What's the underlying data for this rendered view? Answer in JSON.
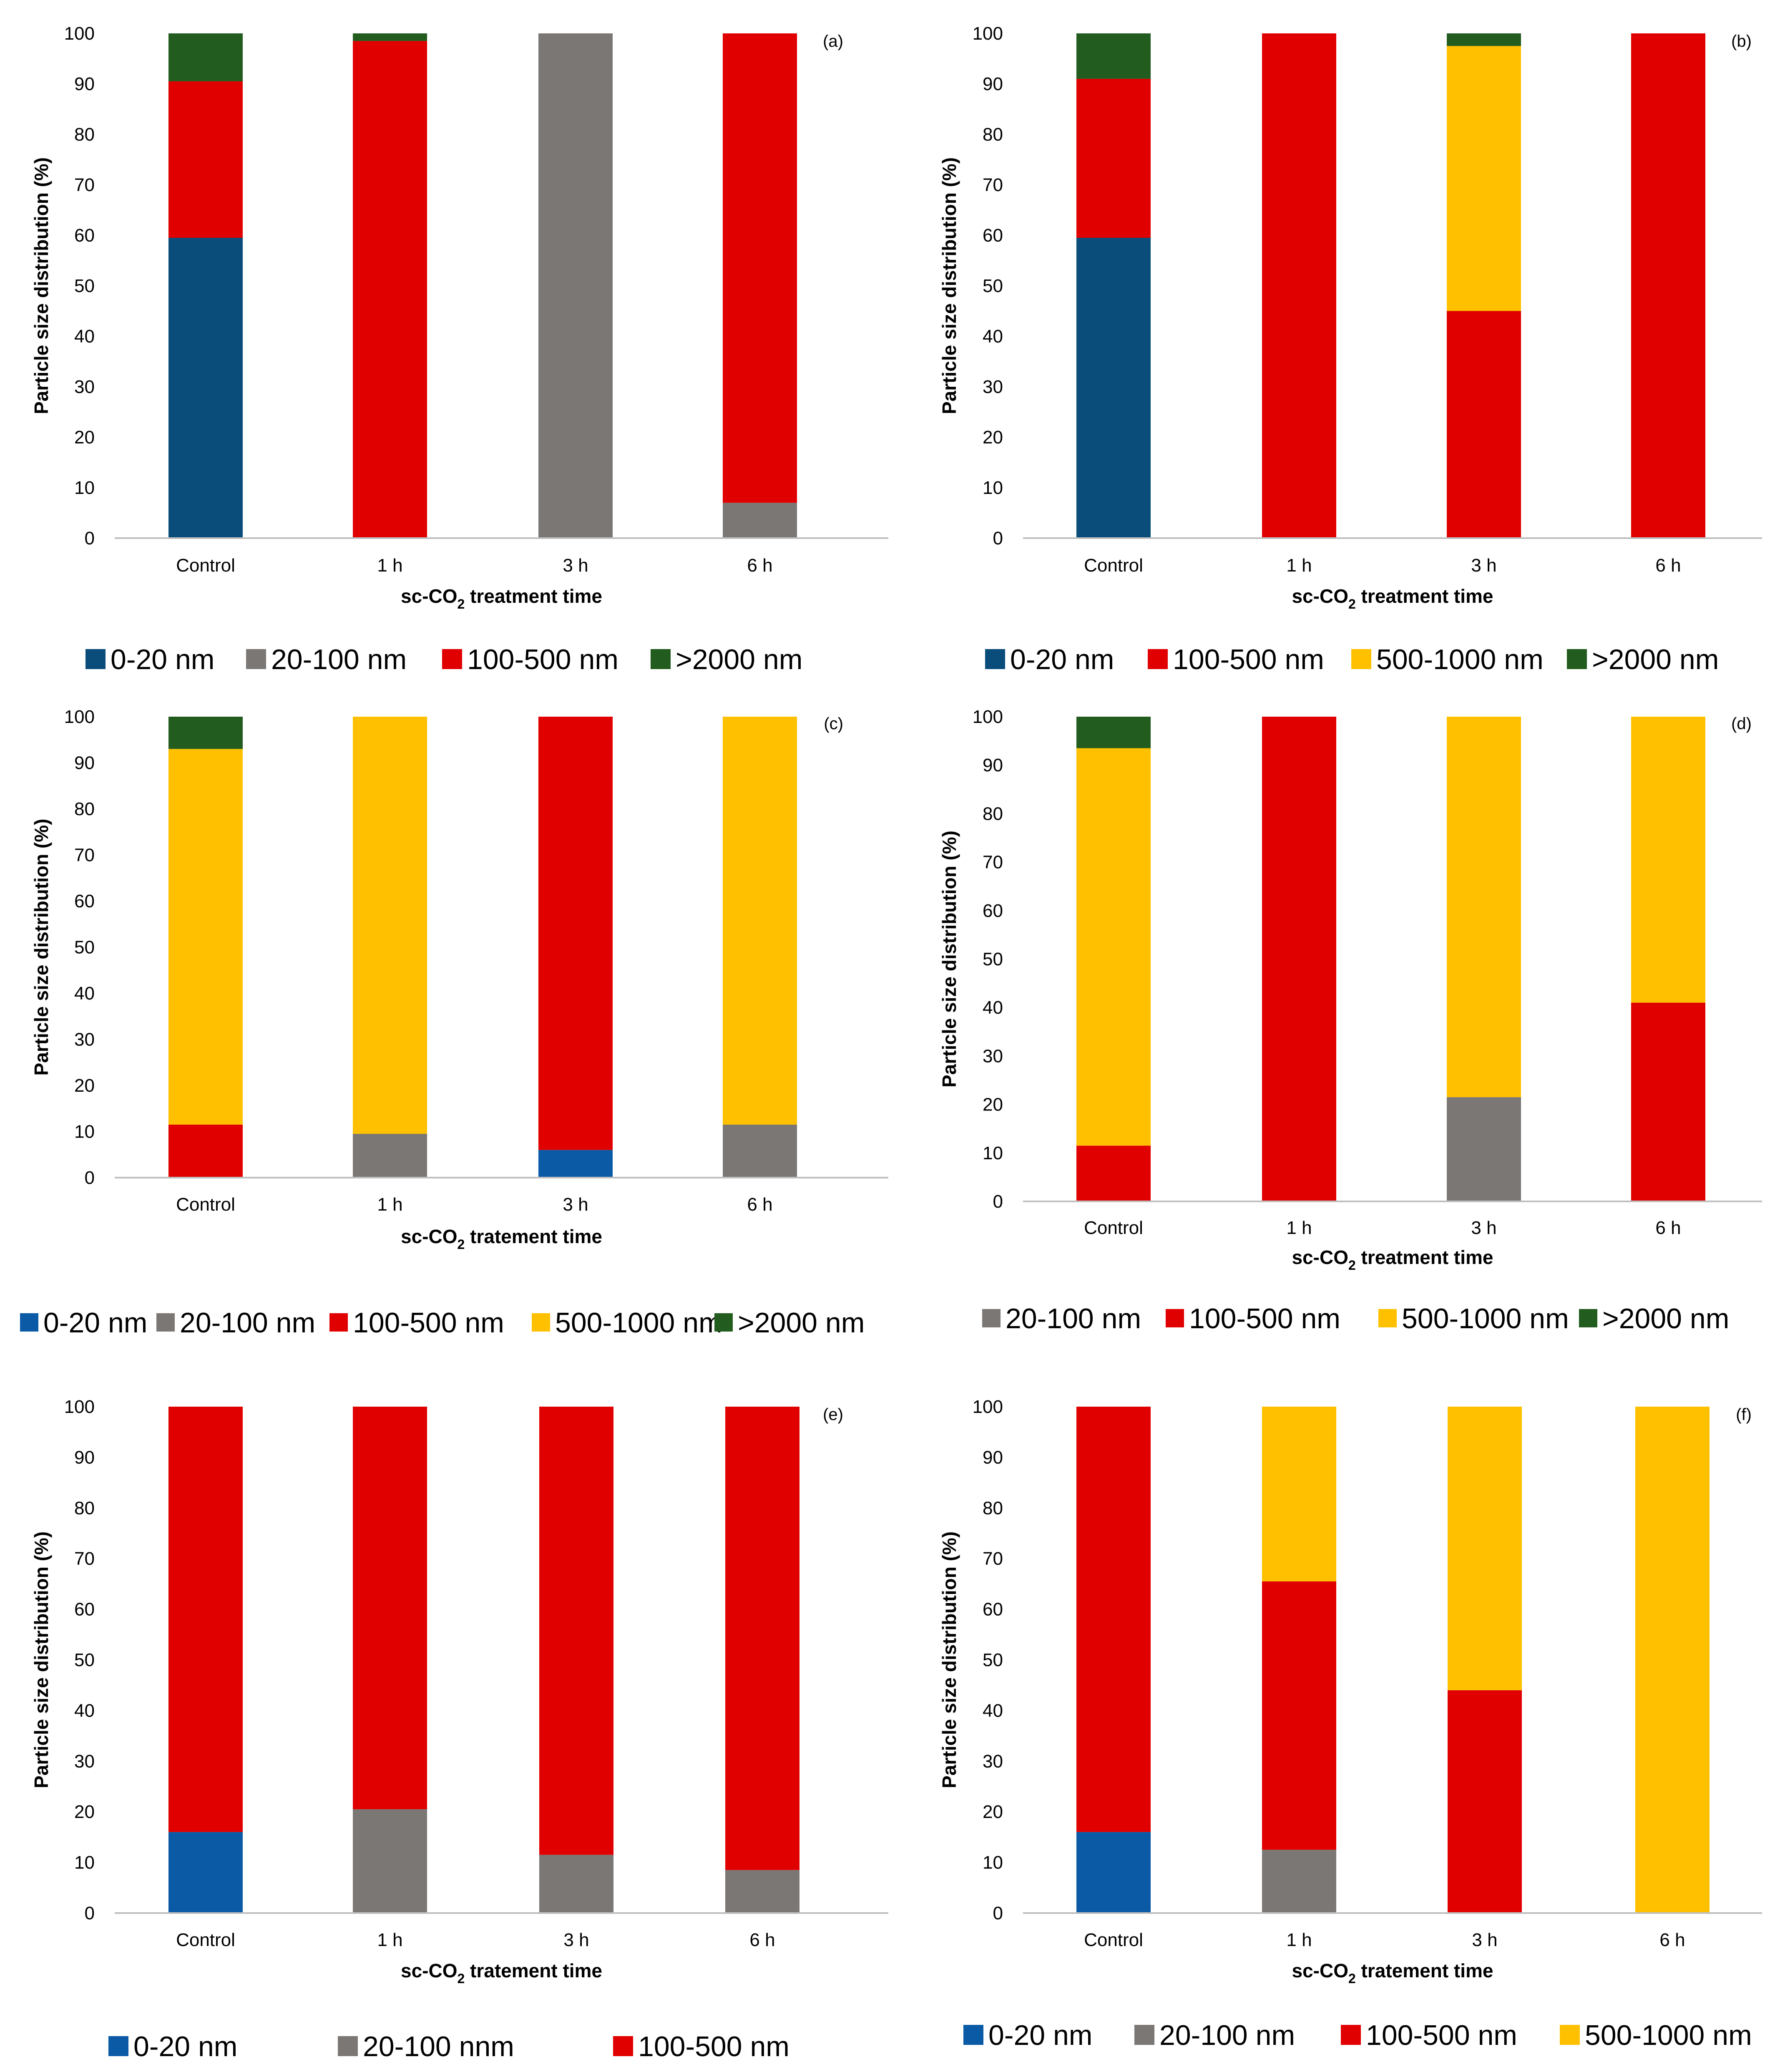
{
  "colors": {
    "0-20 nm": "#0a4c7a",
    "0-20 nm (c,e,f)": "#0b5aa6",
    "20-100 nm": "#7b7774",
    "100-500 nm": "#e00000",
    "500-1000 nm": "#ffc000",
    ">2000 nm": "#225c1e"
  },
  "chart_data": [
    {
      "panel": "(a)",
      "type": "bar",
      "stacked": true,
      "categories": [
        "Control",
        "1 h",
        "3 h",
        "6 h"
      ],
      "xlabel_prefix": "sc-CO",
      "xlabel_sub": "2",
      "xlabel_suffix": " treatment time",
      "ylabel": "Particle size distribution (%)",
      "ylim": [
        0,
        100
      ],
      "yticks": [
        0,
        10,
        20,
        30,
        40,
        50,
        60,
        70,
        80,
        90,
        100
      ],
      "legend": [
        "0-20 nm",
        "20-100 nm",
        "100-500 nm",
        ">2000 nm"
      ],
      "series": [
        {
          "name": "0-20 nm",
          "color": "#0a4c7a",
          "values": [
            59.5,
            0,
            0,
            0
          ]
        },
        {
          "name": "20-100 nm",
          "color": "#7b7774",
          "values": [
            0,
            0,
            100,
            7
          ]
        },
        {
          "name": "100-500 nm",
          "color": "#e00000",
          "values": [
            31,
            98.5,
            0,
            93
          ]
        },
        {
          "name": ">2000 nm",
          "color": "#225c1e",
          "values": [
            9.5,
            1.5,
            0,
            0
          ]
        }
      ]
    },
    {
      "panel": "(b)",
      "type": "bar",
      "stacked": true,
      "categories": [
        "Control",
        "1 h",
        "3 h",
        "6 h"
      ],
      "xlabel_prefix": "sc-CO",
      "xlabel_sub": "2",
      "xlabel_suffix": " treatment time",
      "ylabel": "Particle size distribution (%)",
      "ylim": [
        0,
        100
      ],
      "yticks": [
        0,
        10,
        20,
        30,
        40,
        50,
        60,
        70,
        80,
        90,
        100
      ],
      "legend": [
        "0-20 nm",
        "100-500 nm",
        "500-1000 nm",
        ">2000 nm"
      ],
      "series": [
        {
          "name": "0-20 nm",
          "color": "#0a4c7a",
          "values": [
            59.5,
            0,
            0,
            0
          ]
        },
        {
          "name": "100-500 nm",
          "color": "#e00000",
          "values": [
            31.5,
            100,
            45,
            100
          ]
        },
        {
          "name": "500-1000 nm",
          "color": "#ffc000",
          "values": [
            0,
            0,
            52.5,
            0
          ]
        },
        {
          "name": ">2000 nm",
          "color": "#225c1e",
          "values": [
            9,
            0,
            2.5,
            0
          ]
        }
      ]
    },
    {
      "panel": "(c)",
      "type": "bar",
      "stacked": true,
      "categories": [
        "Control",
        "1 h",
        "3 h",
        "6 h"
      ],
      "xlabel_prefix": "sc-CO",
      "xlabel_sub": "2",
      "xlabel_suffix": " tratement time",
      "ylabel": "Particle size distribution (%)",
      "ylim": [
        0,
        100
      ],
      "yticks": [
        0,
        10,
        20,
        30,
        40,
        50,
        60,
        70,
        80,
        90,
        100
      ],
      "legend": [
        "0-20 nm",
        "20-100 nm",
        "100-500 nm",
        "500-1000 nm",
        ">2000 nm"
      ],
      "series": [
        {
          "name": "0-20 nm",
          "color": "#0b5aa6",
          "values": [
            0,
            0,
            6,
            0
          ]
        },
        {
          "name": "20-100 nm",
          "color": "#7b7774",
          "values": [
            0,
            9.5,
            0,
            11.5
          ]
        },
        {
          "name": "100-500 nm",
          "color": "#e00000",
          "values": [
            11.5,
            0,
            94,
            0
          ]
        },
        {
          "name": "500-1000 nm",
          "color": "#ffc000",
          "values": [
            81.5,
            90.5,
            0,
            88.5
          ]
        },
        {
          "name": ">2000 nm",
          "color": "#225c1e",
          "values": [
            7,
            0,
            0,
            0
          ]
        }
      ]
    },
    {
      "panel": "(d)",
      "type": "bar",
      "stacked": true,
      "categories": [
        "Control",
        "1 h",
        "3 h",
        "6 h"
      ],
      "xlabel_prefix": "sc-CO",
      "xlabel_sub": "2",
      "xlabel_suffix": " treatment time",
      "ylabel": "Particle size distribution (%)",
      "ylim": [
        0,
        100
      ],
      "yticks": [
        0,
        10,
        20,
        30,
        40,
        50,
        60,
        70,
        80,
        90,
        100
      ],
      "legend": [
        "20-100 nm",
        "100-500 nm",
        "500-1000 nm",
        ">2000 nm"
      ],
      "series": [
        {
          "name": "20-100 nm",
          "color": "#7b7774",
          "values": [
            0,
            0,
            21.5,
            0
          ]
        },
        {
          "name": "100-500 nm",
          "color": "#e00000",
          "values": [
            11.5,
            100,
            0,
            41
          ]
        },
        {
          "name": "500-1000 nm",
          "color": "#ffc000",
          "values": [
            82,
            0,
            78.5,
            59
          ]
        },
        {
          "name": ">2000 nm",
          "color": "#225c1e",
          "values": [
            6.5,
            0,
            0,
            0
          ]
        }
      ]
    },
    {
      "panel": "(e)",
      "type": "bar",
      "stacked": true,
      "categories": [
        "Control",
        "1 h",
        "3 h",
        "6 h"
      ],
      "xlabel_prefix": "sc-CO",
      "xlabel_sub": "2",
      "xlabel_suffix": " tratement time",
      "ylabel": "Particle size distribution (%)",
      "ylim": [
        0,
        100
      ],
      "yticks": [
        0,
        10,
        20,
        30,
        40,
        50,
        60,
        70,
        80,
        90,
        100
      ],
      "legend": [
        "0-20 nm",
        "20-100 nnm",
        "100-500 nm"
      ],
      "series": [
        {
          "name": "0-20 nm",
          "color": "#0b5aa6",
          "values": [
            16,
            0,
            0,
            0
          ]
        },
        {
          "name": "20-100 nnm",
          "color": "#7b7774",
          "values": [
            0,
            20.5,
            11.5,
            8.5
          ]
        },
        {
          "name": "100-500 nm",
          "color": "#e00000",
          "values": [
            84,
            79.5,
            88.5,
            91.5
          ]
        }
      ]
    },
    {
      "panel": "(f)",
      "type": "bar",
      "stacked": true,
      "categories": [
        "Control",
        "1 h",
        "3 h",
        "6 h"
      ],
      "xlabel_prefix": "sc-CO",
      "xlabel_sub": "2",
      "xlabel_suffix": " tratement time",
      "ylabel": "Particle size distribution (%)",
      "ylim": [
        0,
        100
      ],
      "yticks": [
        0,
        10,
        20,
        30,
        40,
        50,
        60,
        70,
        80,
        90,
        100
      ],
      "legend": [
        "0-20 nm",
        "20-100 nm",
        "100-500 nm",
        "500-1000 nm"
      ],
      "series": [
        {
          "name": "0-20 nm",
          "color": "#0b5aa6",
          "values": [
            16,
            0,
            0,
            0
          ]
        },
        {
          "name": "20-100 nm",
          "color": "#7b7774",
          "values": [
            0,
            12.5,
            0,
            0
          ]
        },
        {
          "name": "100-500 nm",
          "color": "#e00000",
          "values": [
            84,
            53,
            44,
            0
          ]
        },
        {
          "name": "500-1000 nm",
          "color": "#ffc000",
          "values": [
            0,
            34.5,
            56,
            100
          ]
        }
      ]
    }
  ]
}
